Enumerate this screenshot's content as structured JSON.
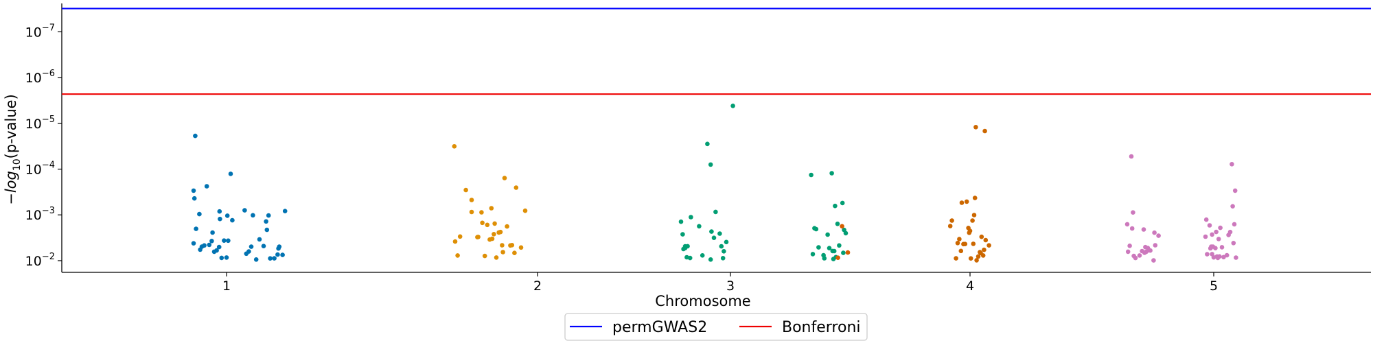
{
  "chart_data": {
    "type": "scatter",
    "title": "",
    "xlabel": "Chromosome",
    "ylabel": "-log10(p-value)",
    "y_scale": "log",
    "y_axis_inverted": true,
    "ylim": [
      0.018,
      2.4e-08
    ],
    "grid": false,
    "legend_placement": "bottom-center, outside plot",
    "x_tick_labels": [
      "1",
      "2",
      "3",
      "4",
      "5"
    ],
    "y_tick_labels": [
      {
        "base": "10",
        "exp": "−2",
        "value": 0.01
      },
      {
        "base": "10",
        "exp": "−3",
        "value": 0.001
      },
      {
        "base": "10",
        "exp": "−4",
        "value": 0.0001
      },
      {
        "base": "10",
        "exp": "−5",
        "value": 1e-05
      },
      {
        "base": "10",
        "exp": "−6",
        "value": 1e-06
      },
      {
        "base": "10",
        "exp": "−7",
        "value": 1e-07
      }
    ],
    "thresholds": [
      {
        "name": "permGWAS2",
        "value": 3.1e-08,
        "color": "#0000ff"
      },
      {
        "name": "Bonferroni",
        "value": 2.3e-06,
        "color": "#ee0000"
      }
    ],
    "series": [
      {
        "chromosome": "1",
        "color": "#0173b2",
        "points": [
          [
            -0.38,
            1.88e-05
          ],
          [
            -0.4,
            0.000295
          ],
          [
            -0.39,
            0.000436
          ],
          [
            -0.37,
            0.00202
          ],
          [
            -0.33,
            0.00096
          ],
          [
            -0.4,
            0.00418
          ],
          [
            -0.32,
            0.00575
          ],
          [
            -0.3,
            0.00495
          ],
          [
            -0.27,
            0.00466
          ],
          [
            -0.24,
            0.000237
          ],
          [
            -0.21,
            0.00451
          ],
          [
            -0.18,
            0.00372
          ],
          [
            -0.17,
            0.00243
          ],
          [
            -0.15,
            0.00638
          ],
          [
            -0.12,
            0.00599
          ],
          [
            -0.09,
            0.00503
          ],
          [
            -0.08,
            0.00123
          ],
          [
            -0.085,
            0.00084
          ],
          [
            -0.06,
            0.0087
          ],
          [
            -0.03,
            0.00364
          ],
          [
            0.0,
            0.00855
          ],
          [
            0.01,
            0.00104
          ],
          [
            0.02,
            0.00365
          ],
          [
            0.05,
            0.000127
          ],
          [
            0.07,
            0.00131
          ],
          [
            0.22,
            0.000794
          ],
          [
            0.24,
            0.00704
          ],
          [
            0.27,
            0.0063
          ],
          [
            0.3,
            0.00496
          ],
          [
            0.32,
            0.00102
          ],
          [
            0.36,
            0.00945
          ],
          [
            0.4,
            0.00342
          ],
          [
            0.45,
            0.0048
          ],
          [
            0.48,
            0.00139
          ],
          [
            0.49,
            0.00212
          ],
          [
            0.51,
            0.00103
          ],
          [
            0.53,
            0.00892
          ],
          [
            0.58,
            0.00889
          ],
          [
            0.62,
            0.00736
          ],
          [
            0.63,
            0.00542
          ],
          [
            0.64,
            0.00496
          ],
          [
            0.68,
            0.0075
          ],
          [
            0.71,
            0.000825
          ]
        ]
      },
      {
        "chromosome": "2",
        "color": "#de8f05",
        "points": [
          [
            -1.01,
            3.18e-05
          ],
          [
            -1.0,
            0.00382
          ],
          [
            -0.97,
            0.00771
          ],
          [
            -0.94,
            0.00297
          ],
          [
            -0.87,
            0.000286
          ],
          [
            -0.8,
            0.000472
          ],
          [
            -0.8,
            0.000864
          ],
          [
            -0.73,
            0.00306
          ],
          [
            -0.72,
            0.00303
          ],
          [
            -0.68,
            0.00088
          ],
          [
            -0.67,
            0.00149
          ],
          [
            -0.64,
            0.00788
          ],
          [
            -0.61,
            0.00165
          ],
          [
            -0.58,
            0.00346
          ],
          [
            -0.56,
            0.000715
          ],
          [
            -0.55,
            0.00332
          ],
          [
            -0.53,
            0.00263
          ],
          [
            -0.52,
            0.00155
          ],
          [
            -0.5,
            0.00855
          ],
          [
            -0.47,
            0.00242
          ],
          [
            -0.45,
            0.00237
          ],
          [
            -0.43,
            0.00461
          ],
          [
            -0.42,
            0.00651
          ],
          [
            -0.4,
            0.000157
          ],
          [
            -0.37,
            0.00179
          ],
          [
            -0.33,
            0.00465
          ],
          [
            -0.31,
            0.00458
          ],
          [
            -0.28,
            0.00678
          ],
          [
            -0.26,
            0.000254
          ],
          [
            -0.2,
            0.00516
          ],
          [
            -0.15,
            0.000812
          ]
        ]
      },
      {
        "chromosome": "3",
        "color": "#029e73",
        "points": [
          [
            0.03,
            4.15e-06
          ],
          [
            -0.28,
            2.82e-05
          ],
          [
            -0.24,
            7.97e-05
          ],
          [
            -0.6,
            0.00141
          ],
          [
            -0.58,
            0.00266
          ],
          [
            -0.57,
            0.00556
          ],
          [
            -0.55,
            0.00533
          ],
          [
            -0.55,
            0.00487
          ],
          [
            -0.53,
            0.00843
          ],
          [
            -0.52,
            0.00484
          ],
          [
            -0.49,
            0.00874
          ],
          [
            -0.48,
            0.00112
          ],
          [
            -0.38,
            0.00177
          ],
          [
            -0.34,
            0.00768
          ],
          [
            -0.23,
            0.00232
          ],
          [
            -0.24,
            0.00944
          ],
          [
            -0.2,
            0.00317
          ],
          [
            -0.18,
            0.000862
          ],
          [
            -0.13,
            0.00256
          ],
          [
            -0.11,
            0.00487
          ],
          [
            -0.09,
            0.00882
          ],
          [
            -0.08,
            0.00624
          ],
          [
            -0.05,
            0.00391
          ]
        ]
      },
      {
        "chromosome": "3b",
        "color": "#029e73",
        "points": [
          [
            -0.62,
            0.000134
          ],
          [
            -0.6,
            0.00719
          ],
          [
            -0.58,
            0.00196
          ],
          [
            -0.56,
            0.00205
          ],
          [
            -0.53,
            0.00513
          ],
          [
            -0.47,
            0.00763
          ],
          [
            -0.46,
            0.00887
          ],
          [
            -0.42,
            0.0027
          ],
          [
            -0.4,
            0.00533
          ],
          [
            -0.37,
            0.000123
          ],
          [
            -0.36,
            0.00616
          ],
          [
            -0.35,
            0.0092
          ],
          [
            -0.34,
            0.00617
          ],
          [
            -0.33,
            0.000638
          ],
          [
            -0.32,
            0.00838
          ],
          [
            -0.3,
            0.00157
          ],
          [
            -0.28,
            0.00466
          ],
          [
            -0.24,
            0.000549
          ],
          [
            -0.23,
            0.00675
          ],
          [
            -0.22,
            0.00213
          ],
          [
            -0.2,
            0.00251
          ]
        ]
      },
      {
        "chromosome": "3c",
        "color": "#d55e00",
        "points": [
          [
            -0.27,
            0.00863
          ],
          [
            -0.22,
            0.00177
          ],
          [
            -0.15,
            0.00664
          ]
        ]
      },
      {
        "chromosome": "4",
        "color": "#cc6700",
        "points": [
          [
            -0.24,
            0.00175
          ],
          [
            -0.22,
            0.00133
          ],
          [
            -0.17,
            0.00889
          ],
          [
            -0.15,
            0.00412
          ],
          [
            -0.13,
            0.00338
          ],
          [
            -0.11,
            0.00614
          ],
          [
            -0.1,
            0.000543
          ],
          [
            -0.08,
            0.00434
          ],
          [
            -0.06,
            0.00433
          ],
          [
            -0.04,
            0.000513
          ],
          [
            -0.02,
            0.00193
          ],
          [
            -0.01,
            0.00246
          ],
          [
            0.0,
            0.00224
          ],
          [
            0.01,
            0.00893
          ],
          [
            0.03,
            0.00133
          ],
          [
            0.04,
            0.00429
          ],
          [
            0.05,
            0.00101
          ],
          [
            0.06,
            0.000427
          ],
          [
            0.07,
            1.21e-05
          ],
          [
            0.08,
            0.00981
          ],
          [
            0.1,
            0.0081
          ],
          [
            0.12,
            0.00653
          ],
          [
            0.13,
            0.00686
          ],
          [
            0.14,
            0.00301
          ],
          [
            0.16,
            0.00769
          ],
          [
            0.17,
            0.00581
          ],
          [
            0.18,
            1.47e-05
          ],
          [
            0.19,
            0.00356
          ],
          [
            0.23,
            0.00464
          ]
        ]
      },
      {
        "chromosome": "5",
        "color": "#cc78bc",
        "points": [
          [
            -1.05,
            0.0016
          ],
          [
            -1.04,
            0.00637
          ],
          [
            -1.02,
            0.00474
          ],
          [
            -1.0,
            5.28e-05
          ],
          [
            -0.99,
            0.00198
          ],
          [
            -0.98,
            0.000885
          ],
          [
            -0.97,
            0.00788
          ],
          [
            -0.95,
            0.00874
          ],
          [
            -0.9,
            0.00769
          ],
          [
            -0.87,
            0.00618
          ],
          [
            -0.85,
            0.00208
          ],
          [
            -0.84,
            0.00672
          ],
          [
            -0.83,
            0.00505
          ],
          [
            -0.82,
            0.00641
          ],
          [
            -0.8,
            0.00531
          ],
          [
            -0.79,
            0.00593
          ],
          [
            -0.77,
            0.00601
          ],
          [
            -0.73,
            0.00989
          ],
          [
            -0.72,
            0.00245
          ],
          [
            -0.71,
            0.00461
          ],
          [
            -0.67,
            0.00285
          ],
          [
            -0.1,
            0.00299
          ],
          [
            -0.09,
            0.00127
          ],
          [
            -0.08,
            0.00723
          ],
          [
            -0.05,
            0.00169
          ],
          [
            -0.04,
            0.00538
          ],
          [
            -0.03,
            0.00494
          ],
          [
            -0.02,
            0.0072
          ],
          [
            -0.02,
            0.00269
          ],
          [
            -0.01,
            0.00494
          ],
          [
            0.0,
            0.00847
          ],
          [
            0.02,
            0.00532
          ],
          [
            0.03,
            0.00236
          ],
          [
            0.04,
            0.00811
          ],
          [
            0.05,
            0.0087
          ],
          [
            0.06,
            0.00336
          ],
          [
            0.07,
            0.00808
          ],
          [
            0.08,
            0.00192
          ],
          [
            0.1,
            0.00509
          ],
          [
            0.12,
            0.00838
          ],
          [
            0.16,
            0.00763
          ],
          [
            0.18,
            0.00275
          ],
          [
            0.2,
            0.00237
          ],
          [
            0.22,
            7.8e-05
          ],
          [
            0.23,
            0.000648
          ],
          [
            0.24,
            0.00412
          ],
          [
            0.25,
            0.0016
          ],
          [
            0.26,
            0.000295
          ],
          [
            0.27,
            0.00858
          ]
        ]
      }
    ]
  }
}
